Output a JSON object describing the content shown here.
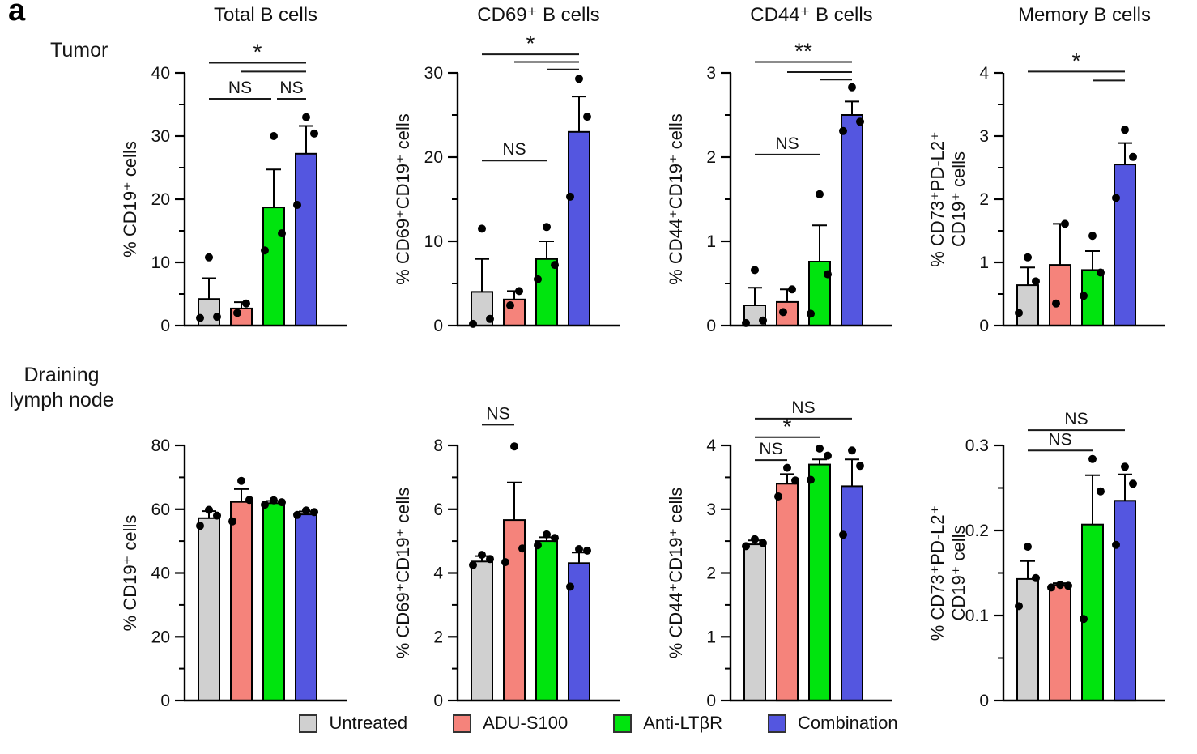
{
  "panel_label": "a",
  "row_labels": [
    "Tumor",
    "Draining",
    "lymph node"
  ],
  "legend": {
    "position": "bottom",
    "items": [
      {
        "label": "Untreated",
        "color": "#D0D0D0"
      },
      {
        "label": "ADU-S100",
        "color": "#F5837B"
      },
      {
        "label": "Anti-LTβR",
        "color": "#00E40E"
      },
      {
        "label": "Combination",
        "color": "#5456E0"
      }
    ]
  },
  "chart_data": [
    {
      "type": "bar",
      "row": "Tumor",
      "title": "Total B cells",
      "categories": [
        "Untreated",
        "ADU-S100",
        "Anti-LTβR",
        "Combination"
      ],
      "ylabel": [
        "% CD19⁺ cells"
      ],
      "ylim": [
        0,
        40
      ],
      "yticks": [
        0,
        10,
        20,
        30,
        40
      ],
      "minor_ticks": [
        5,
        15,
        25,
        35
      ],
      "means": [
        4.2,
        2.7,
        18.7,
        27.2
      ],
      "sem_top": [
        7.5,
        3.7,
        24.7,
        31.6
      ],
      "points": [
        [
          1.2,
          1.4,
          10.8
        ],
        [
          2.0,
          3.5
        ],
        [
          11.9,
          14.6,
          30.0
        ],
        [
          19.1,
          30.4,
          33.0
        ]
      ],
      "significance": [
        {
          "from": 0,
          "to": 3,
          "y": 41.6,
          "label": "*"
        },
        {
          "from": 1,
          "to": 3,
          "y": 40.2,
          "label": ""
        },
        {
          "from": 0,
          "to": 2,
          "y": 35.9,
          "label": "NS",
          "pad2": -3
        },
        {
          "from": 2,
          "to": 3,
          "y": 35.9,
          "label": "NS",
          "pad1": 4
        }
      ]
    },
    {
      "type": "bar",
      "row": "Tumor",
      "title": "CD69⁺ B cells",
      "categories": [
        "Untreated",
        "ADU-S100",
        "Anti-LTβR",
        "Combination"
      ],
      "ylabel": [
        "% CD69⁺CD19⁺ cells"
      ],
      "ylim": [
        0,
        30
      ],
      "yticks": [
        0,
        10,
        20,
        30
      ],
      "minor_ticks": [
        5,
        15,
        25
      ],
      "means": [
        4.0,
        3.1,
        7.9,
        23.0
      ],
      "sem_top": [
        7.9,
        4.1,
        10.0,
        27.2
      ],
      "points": [
        [
          0.2,
          0.8,
          11.5
        ],
        [
          2.4,
          4.1
        ],
        [
          5.5,
          7.2,
          11.7
        ],
        [
          15.3,
          24.8,
          29.3
        ]
      ],
      "significance": [
        {
          "from": 0,
          "to": 3,
          "y": 32.2,
          "label": "*"
        },
        {
          "from": 1,
          "to": 3,
          "y": 31.3,
          "label": ""
        },
        {
          "from": 2,
          "to": 3,
          "y": 30.4,
          "label": ""
        },
        {
          "from": 0,
          "to": 2,
          "y": 19.6,
          "label": "NS"
        }
      ]
    },
    {
      "type": "bar",
      "row": "Tumor",
      "title": "CD44⁺ B cells",
      "categories": [
        "Untreated",
        "ADU-S100",
        "Anti-LTβR",
        "Combination"
      ],
      "ylabel": [
        "% CD44⁺CD19⁺ cells"
      ],
      "ylim": [
        0,
        3
      ],
      "yticks": [
        0,
        1,
        2,
        3
      ],
      "minor_ticks": [
        0.5,
        1.5,
        2.5
      ],
      "means": [
        0.24,
        0.28,
        0.76,
        2.5
      ],
      "sem_top": [
        0.45,
        0.43,
        1.19,
        2.66
      ],
      "points": [
        [
          0.03,
          0.06,
          0.66
        ],
        [
          0.16,
          0.43
        ],
        [
          0.14,
          0.61,
          1.56
        ],
        [
          2.31,
          2.42,
          2.83
        ]
      ],
      "significance": [
        {
          "from": 0,
          "to": 3,
          "y": 3.13,
          "label": "**"
        },
        {
          "from": 1,
          "to": 3,
          "y": 3.01,
          "label": ""
        },
        {
          "from": 2,
          "to": 3,
          "y": 2.92,
          "label": ""
        },
        {
          "from": 0,
          "to": 2,
          "y": 2.03,
          "label": "NS"
        }
      ]
    },
    {
      "type": "bar",
      "row": "Tumor",
      "title": "Memory B cells",
      "categories": [
        "Untreated",
        "ADU-S100",
        "Anti-LTβR",
        "Combination"
      ],
      "ylabel": [
        "% CD73⁺PD-L2⁺",
        "CD19⁺ cells"
      ],
      "ylim": [
        0,
        4
      ],
      "yticks": [
        0,
        1,
        2,
        3,
        4
      ],
      "minor_ticks": [
        0.5,
        1.5,
        2.5,
        3.5
      ],
      "means": [
        0.64,
        0.96,
        0.88,
        2.55
      ],
      "sem_top": [
        0.92,
        1.61,
        1.18,
        2.89
      ],
      "points": [
        [
          0.2,
          0.7,
          1.08
        ],
        [
          0.35,
          1.61
        ],
        [
          0.47,
          0.84,
          1.42
        ],
        [
          2.02,
          2.67,
          3.1
        ]
      ],
      "significance": [
        {
          "from": 0,
          "to": 3,
          "y": 4.02,
          "label": "*"
        },
        {
          "from": 2,
          "to": 3,
          "y": 3.88,
          "label": ""
        }
      ]
    },
    {
      "type": "bar",
      "row": "Draining lymph node",
      "title": "",
      "categories": [
        "Untreated",
        "ADU-S100",
        "Anti-LTβR",
        "Combination"
      ],
      "ylabel": [
        "% CD19⁺ cells"
      ],
      "ylim": [
        0,
        80
      ],
      "yticks": [
        0,
        20,
        40,
        60,
        80
      ],
      "minor_ticks": [
        10,
        30,
        50,
        70
      ],
      "means": [
        57.2,
        62.3,
        61.9,
        58.4
      ],
      "sem_top": [
        59.4,
        66.3,
        62.6,
        59.3
      ],
      "points": [
        [
          54.8,
          58.0,
          59.8
        ],
        [
          56.2,
          62.9,
          68.9
        ],
        [
          61.4,
          62.2,
          62.8
        ],
        [
          58.2,
          59.1,
          59.6
        ]
      ],
      "significance": []
    },
    {
      "type": "bar",
      "row": "Draining lymph node",
      "title": "",
      "categories": [
        "Untreated",
        "ADU-S100",
        "Anti-LTβR",
        "Combination"
      ],
      "ylabel": [
        "% CD69⁺CD19⁺ cells"
      ],
      "ylim": [
        0,
        8
      ],
      "yticks": [
        0,
        2,
        4,
        6,
        8
      ],
      "minor_ticks": [
        1,
        3,
        5,
        7
      ],
      "means": [
        4.36,
        5.66,
        5.0,
        4.31
      ],
      "sem_top": [
        4.53,
        6.84,
        5.12,
        4.64
      ],
      "points": [
        [
          4.25,
          4.44,
          4.57
        ],
        [
          4.34,
          4.77,
          7.97
        ],
        [
          4.87,
          5.1,
          5.21
        ],
        [
          3.57,
          4.7,
          4.75
        ]
      ],
      "significance": [
        {
          "from": 0,
          "to": 1,
          "y": 8.65,
          "label": "NS"
        }
      ]
    },
    {
      "type": "bar",
      "row": "Draining lymph node",
      "title": "",
      "categories": [
        "Untreated",
        "ADU-S100",
        "Anti-LTβR",
        "Combination"
      ],
      "ylabel": [
        "% CD44⁺CD19⁺ cells"
      ],
      "ylim": [
        0,
        4
      ],
      "yticks": [
        0,
        1,
        2,
        3,
        4
      ],
      "minor_ticks": [
        0.5,
        1.5,
        2.5,
        3.5
      ],
      "means": [
        2.45,
        3.4,
        3.7,
        3.36
      ],
      "sem_top": [
        2.51,
        3.55,
        3.78,
        3.78
      ],
      "points": [
        [
          2.42,
          2.47,
          2.53
        ],
        [
          3.2,
          3.45,
          3.65
        ],
        [
          3.46,
          3.84,
          3.95
        ],
        [
          2.6,
          3.68,
          3.92
        ]
      ],
      "significance": [
        {
          "from": 0,
          "to": 3,
          "y": 4.42,
          "label": "NS"
        },
        {
          "from": 0,
          "to": 2,
          "y": 4.13,
          "label": "*"
        },
        {
          "from": 0,
          "to": 1,
          "y": 3.77,
          "label": "NS"
        }
      ]
    },
    {
      "type": "bar",
      "row": "Draining lymph node",
      "title": "",
      "categories": [
        "Untreated",
        "ADU-S100",
        "Anti-LTβR",
        "Combination"
      ],
      "ylabel": [
        "% CD73⁺PD-L2⁺",
        "CD19⁺ cells"
      ],
      "ylim": [
        0,
        0.3
      ],
      "yticks": [
        0,
        0.1,
        0.2,
        0.3
      ],
      "minor_ticks": [
        0.05,
        0.15,
        0.25
      ],
      "means": [
        0.143,
        0.136,
        0.207,
        0.235
      ],
      "sem_top": [
        0.164,
        0.138,
        0.265,
        0.266
      ],
      "points": [
        [
          0.111,
          0.144,
          0.181
        ],
        [
          0.133,
          0.135,
          0.136
        ],
        [
          0.096,
          0.246,
          0.284
        ],
        [
          0.183,
          0.255,
          0.275
        ]
      ],
      "significance": [
        {
          "from": 0,
          "to": 3,
          "y": 0.318,
          "label": "NS"
        },
        {
          "from": 0,
          "to": 2,
          "y": 0.294,
          "label": "NS"
        }
      ]
    }
  ]
}
